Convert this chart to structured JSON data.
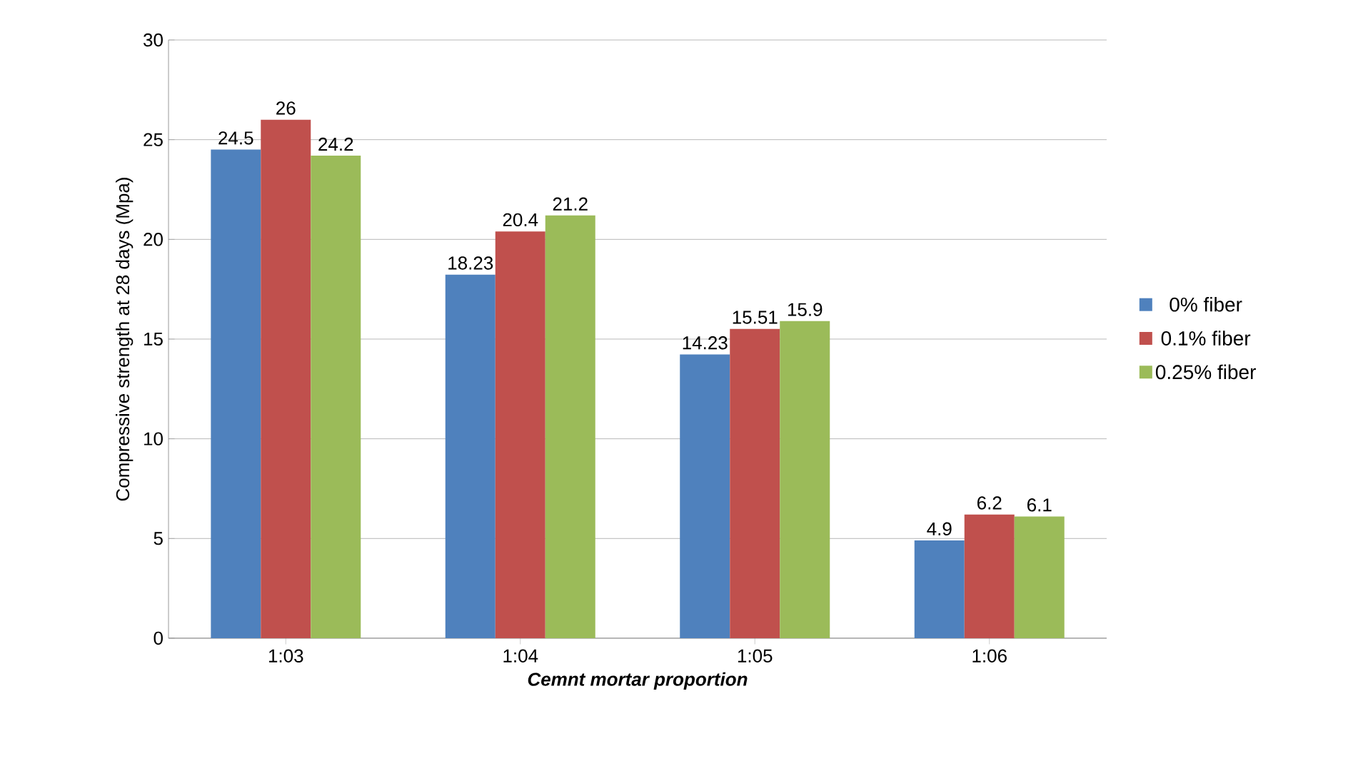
{
  "chart_data": {
    "type": "bar",
    "xlabel": "Cemnt mortar proportion",
    "ylabel": "Compressive strength  at 28 days (Mpa)",
    "categories": [
      "1:03",
      "1:04",
      "1:05",
      "1:06"
    ],
    "series": [
      {
        "name": "0% fiber",
        "color": "#4f81bd",
        "values": [
          24.5,
          18.23,
          14.23,
          4.9
        ]
      },
      {
        "name": "0.1% fiber",
        "color": "#c0504d",
        "values": [
          26,
          20.4,
          15.51,
          6.2
        ]
      },
      {
        "name": "0.25% fiber",
        "color": "#9bbb59",
        "values": [
          24.2,
          21.2,
          15.9,
          6.1
        ]
      }
    ],
    "ylim": [
      0,
      30
    ],
    "yticks": [
      0,
      5,
      10,
      15,
      20,
      25,
      30
    ],
    "grid": "y",
    "legend": "right",
    "data_labels": true
  }
}
